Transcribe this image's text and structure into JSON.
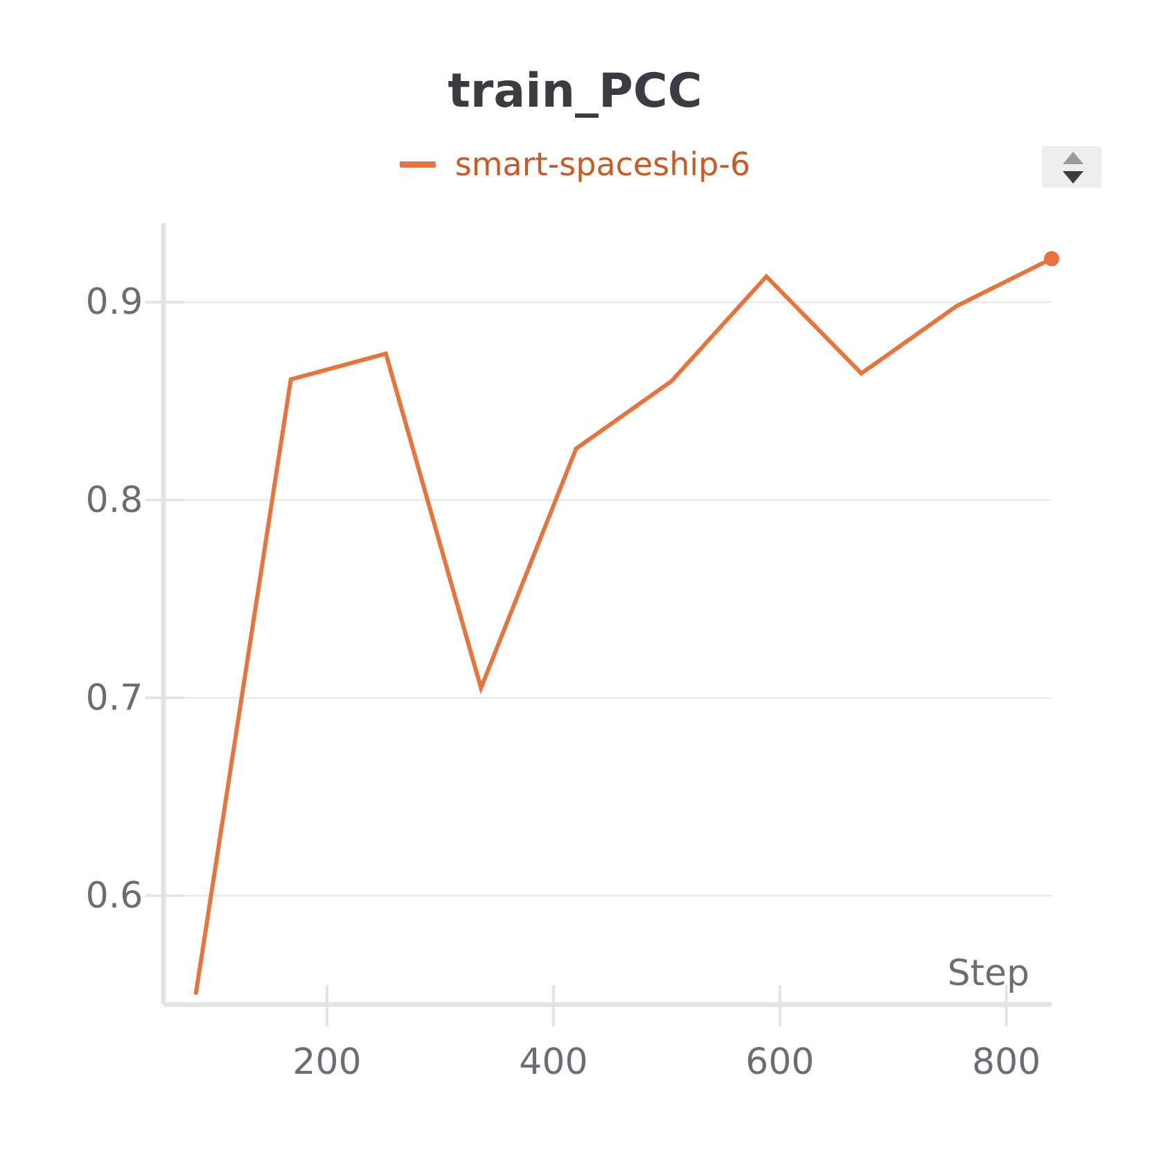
{
  "chart_data": {
    "type": "line",
    "title": "train_PCC",
    "xlabel": "Step",
    "ylabel": "",
    "xlim": [
      58,
      840
    ],
    "ylim": [
      0.545,
      0.94
    ],
    "xticks": [
      200,
      400,
      600,
      800
    ],
    "xtick_labels": [
      "200",
      "400",
      "600",
      "800"
    ],
    "yticks": [
      0.6,
      0.7,
      0.8,
      0.9
    ],
    "ytick_labels": [
      "0.6",
      "0.7",
      "0.8",
      "0.9"
    ],
    "grid": true,
    "legend_position": "top-center",
    "series": [
      {
        "name": "smart-spaceship-6",
        "color": "#e8743b",
        "x": [
          84,
          168,
          252,
          336,
          420,
          504,
          588,
          672,
          756,
          840
        ],
        "y": [
          0.55,
          0.861,
          0.874,
          0.705,
          0.826,
          0.86,
          0.913,
          0.864,
          0.898,
          0.922
        ]
      }
    ]
  },
  "legend": {
    "label": "smart-spaceship-6",
    "text_color": "#c95a22"
  },
  "colors": {
    "title": "#3a3c42",
    "tick_label": "#6b6d76",
    "axis": "#e3e3e3",
    "grid": "#e6e6e6"
  },
  "controls": {
    "scroll_icon": "up-down-arrows-icon"
  }
}
